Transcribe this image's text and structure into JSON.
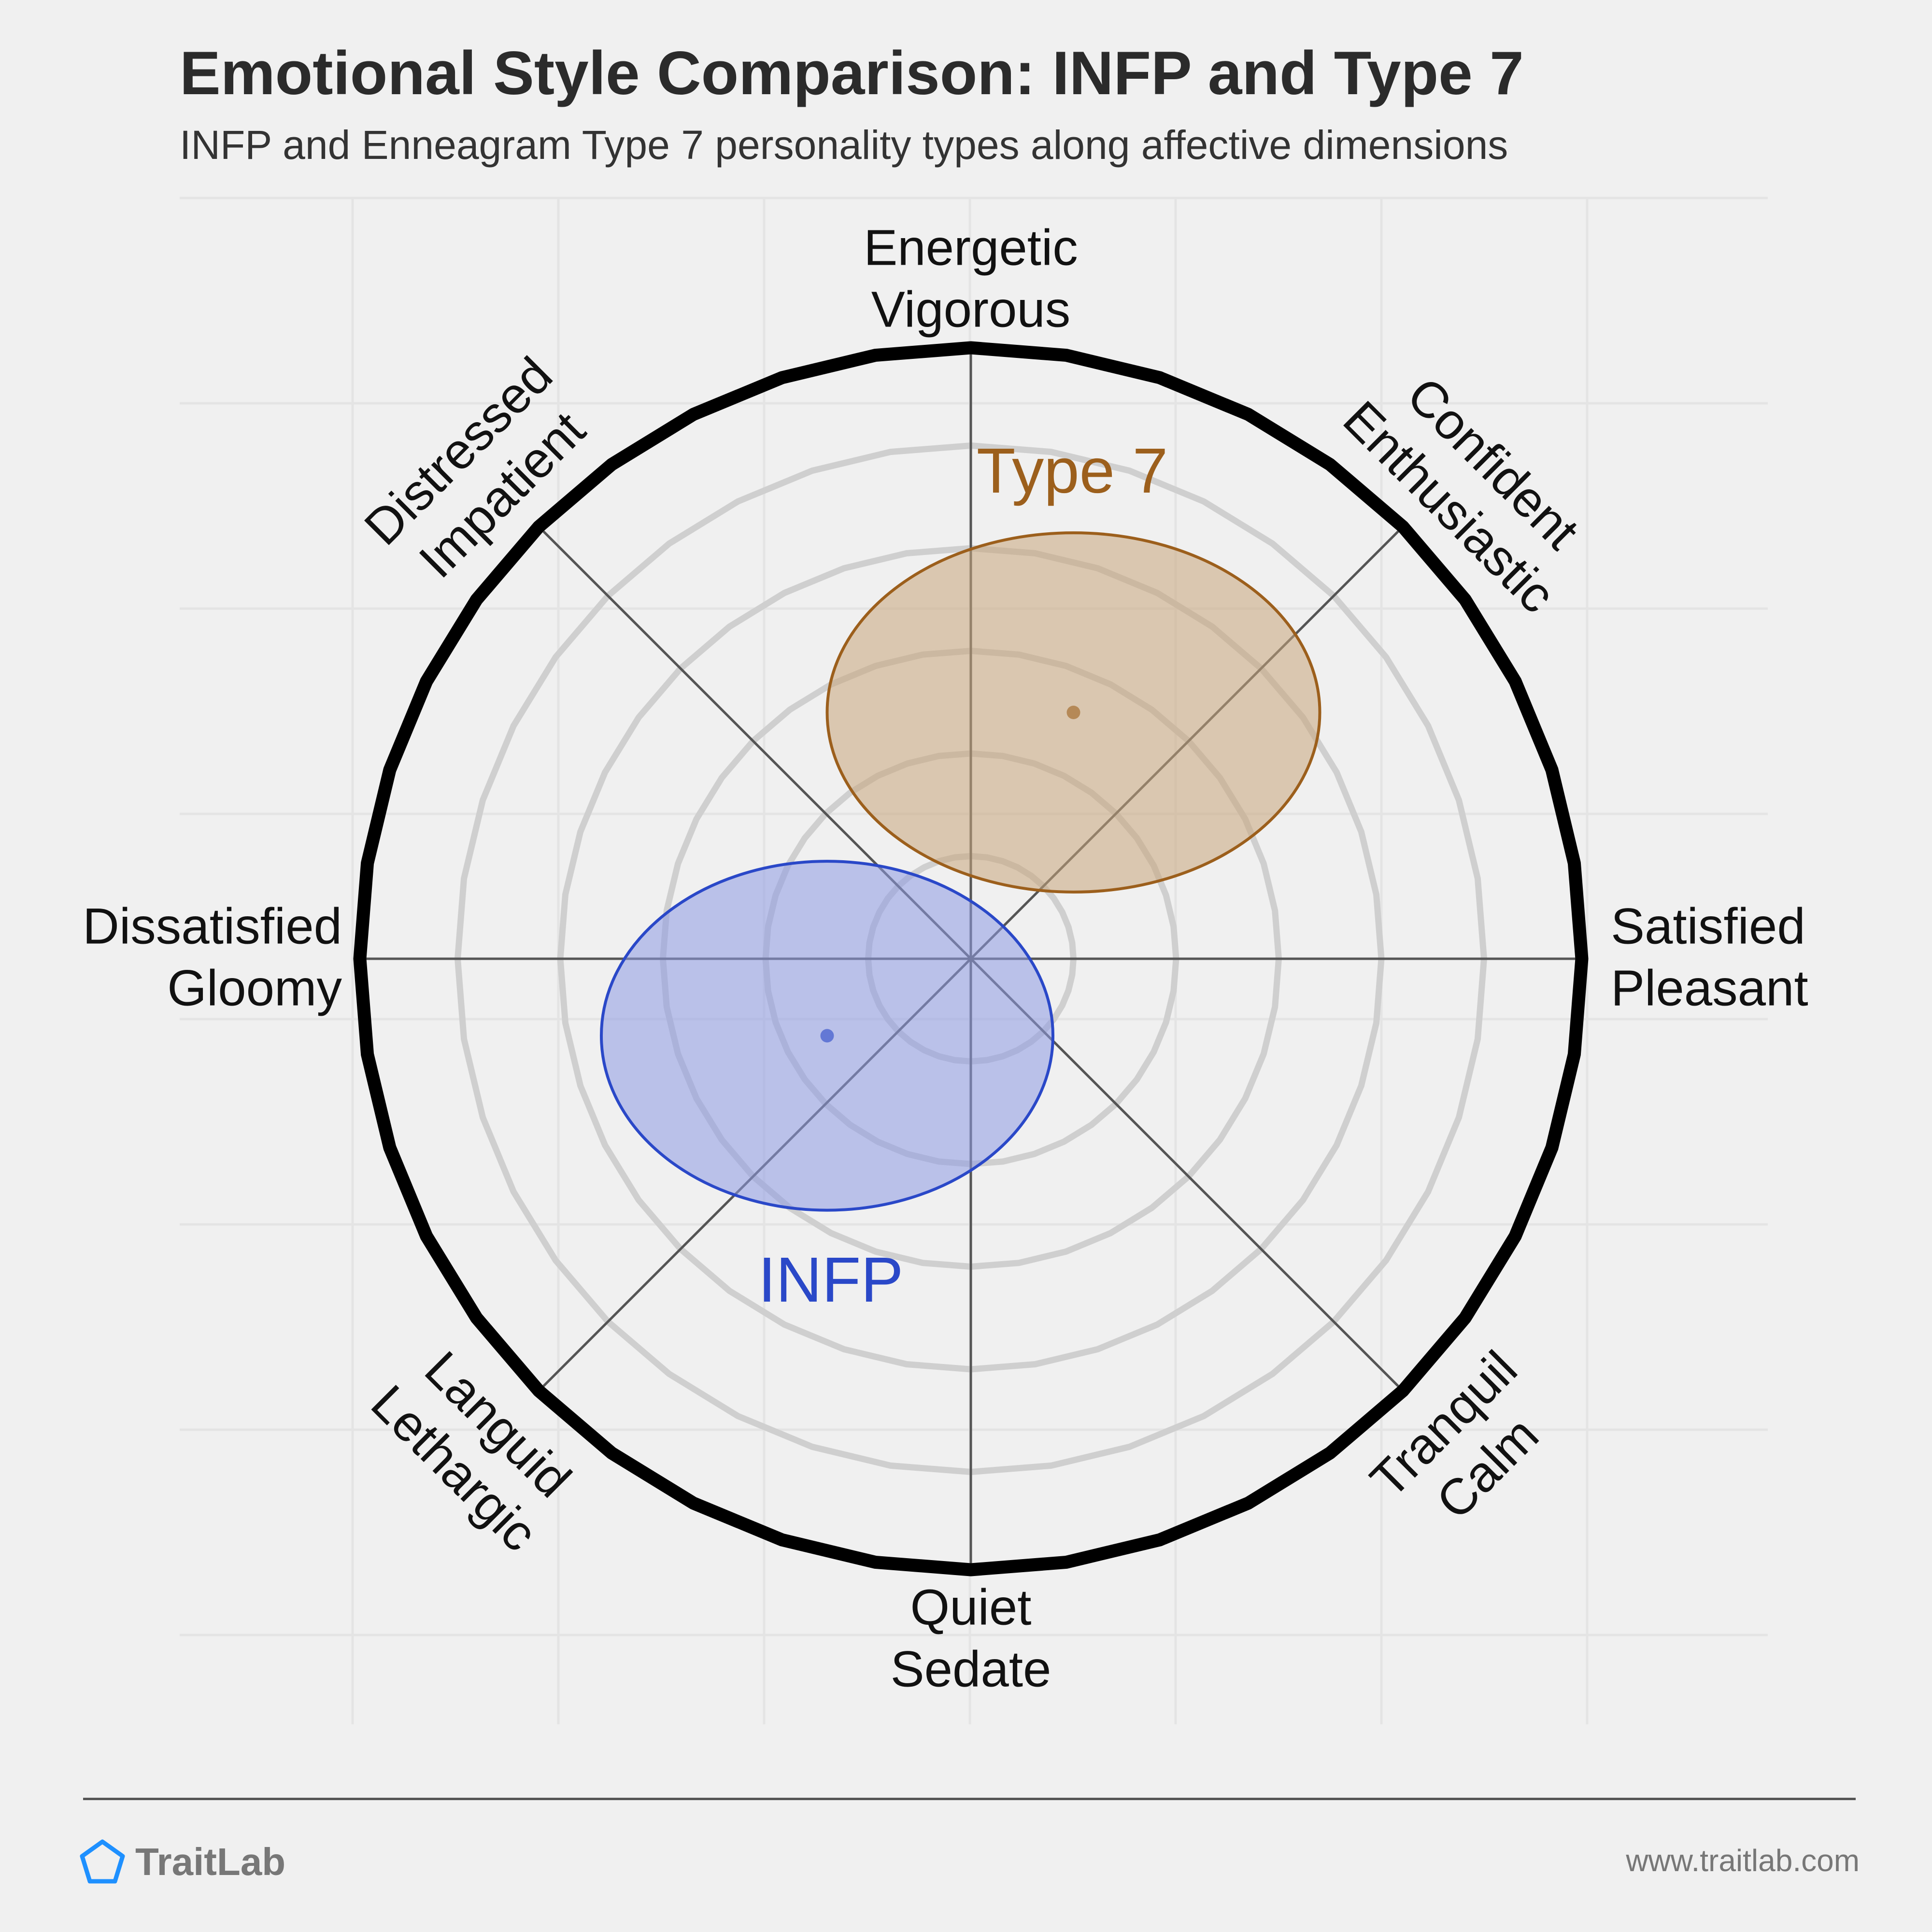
{
  "title": "Emotional Style Comparison: INFP and Type 7",
  "subtitle": "INFP and Enneagram Type 7 personality types along affective dimensions",
  "brand": {
    "name": "TraitLab",
    "icon": "pentagon-icon",
    "color": "#1e90ff"
  },
  "footer_url": "www.traitlab.com",
  "chart_data": {
    "type": "scatter",
    "title": "Emotional Style Comparison: INFP and Type 7",
    "subtitle": "INFP and Enneagram Type 7 personality types along affective dimensions",
    "xlim": [
      -6,
      6
    ],
    "ylim": [
      -6,
      6
    ],
    "rings": [
      1,
      2,
      3,
      4,
      5
    ],
    "grid": true,
    "axes": [
      {
        "id": "top",
        "lines": [
          "Energetic",
          "Vigorous"
        ]
      },
      {
        "id": "top-right",
        "lines": [
          "Confident",
          "Enthusiastic"
        ]
      },
      {
        "id": "right",
        "lines": [
          "Satisfied",
          "Pleasant"
        ]
      },
      {
        "id": "bottom-right",
        "lines": [
          "Tranquil",
          "Calm"
        ]
      },
      {
        "id": "bottom",
        "lines": [
          "Quiet",
          "Sedate"
        ]
      },
      {
        "id": "bottom-left",
        "lines": [
          "Languid",
          "Lethargic"
        ]
      },
      {
        "id": "left",
        "lines": [
          "Dissatisfied",
          "Gloomy"
        ]
      },
      {
        "id": "top-left",
        "lines": [
          "Distressed",
          "Impatient"
        ]
      }
    ],
    "series": [
      {
        "name": "Type 7",
        "x": 1.0,
        "y": 2.4,
        "rx": 2.4,
        "ry": 1.75,
        "color": "#9c5f1c",
        "fill": "#c9a57c"
      },
      {
        "name": "INFP",
        "x": -1.4,
        "y": -0.75,
        "rx": 2.2,
        "ry": 1.7,
        "color": "#2a48c8",
        "fill": "#8e9be3"
      }
    ]
  }
}
